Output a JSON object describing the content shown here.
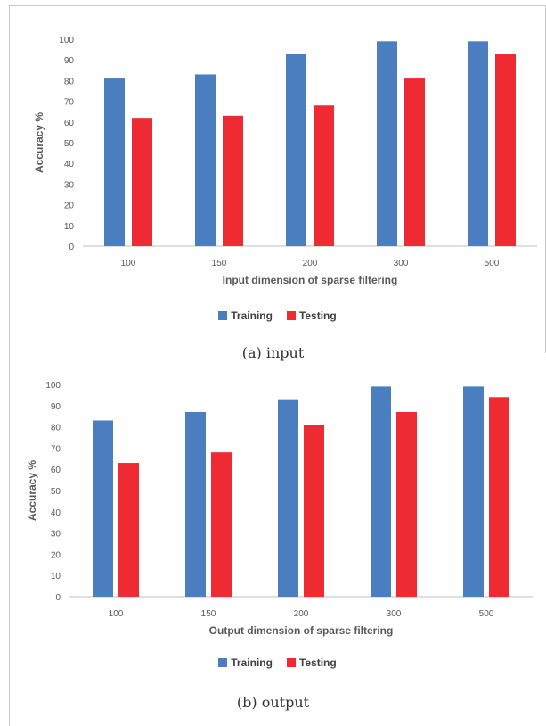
{
  "colors": {
    "training": "#4a7ebf",
    "testing": "#ee2a33",
    "axis": "#bfbfbf",
    "text": "#595959"
  },
  "chart_data": [
    {
      "type": "bar",
      "categories": [
        "100",
        "150",
        "200",
        "300",
        "500"
      ],
      "series": [
        {
          "name": "Training",
          "values": [
            81,
            83,
            93,
            99,
            99
          ]
        },
        {
          "name": "Testing",
          "values": [
            62,
            63,
            68,
            81,
            93
          ]
        }
      ],
      "xlabel": "Input dimension of sparse filtering",
      "ylabel": "Accuracy %",
      "ylim": [
        0,
        100
      ],
      "yticks": [
        "0",
        "10",
        "20",
        "30",
        "40",
        "50",
        "60",
        "70",
        "80",
        "90",
        "100"
      ],
      "grid": false,
      "legend": "bottom",
      "caption": "(a) input"
    },
    {
      "type": "bar",
      "categories": [
        "100",
        "150",
        "200",
        "300",
        "500"
      ],
      "series": [
        {
          "name": "Training",
          "values": [
            83,
            87,
            93,
            99,
            99
          ]
        },
        {
          "name": "Testing",
          "values": [
            63,
            68,
            81,
            87,
            94
          ]
        }
      ],
      "xlabel": "Output dimension of sparse filtering",
      "ylabel": "Accuracy %",
      "ylim": [
        0,
        100
      ],
      "yticks": [
        "0",
        "10",
        "20",
        "30",
        "40",
        "50",
        "60",
        "70",
        "80",
        "90",
        "100"
      ],
      "grid": false,
      "legend": "bottom",
      "caption": "(b) output"
    }
  ]
}
